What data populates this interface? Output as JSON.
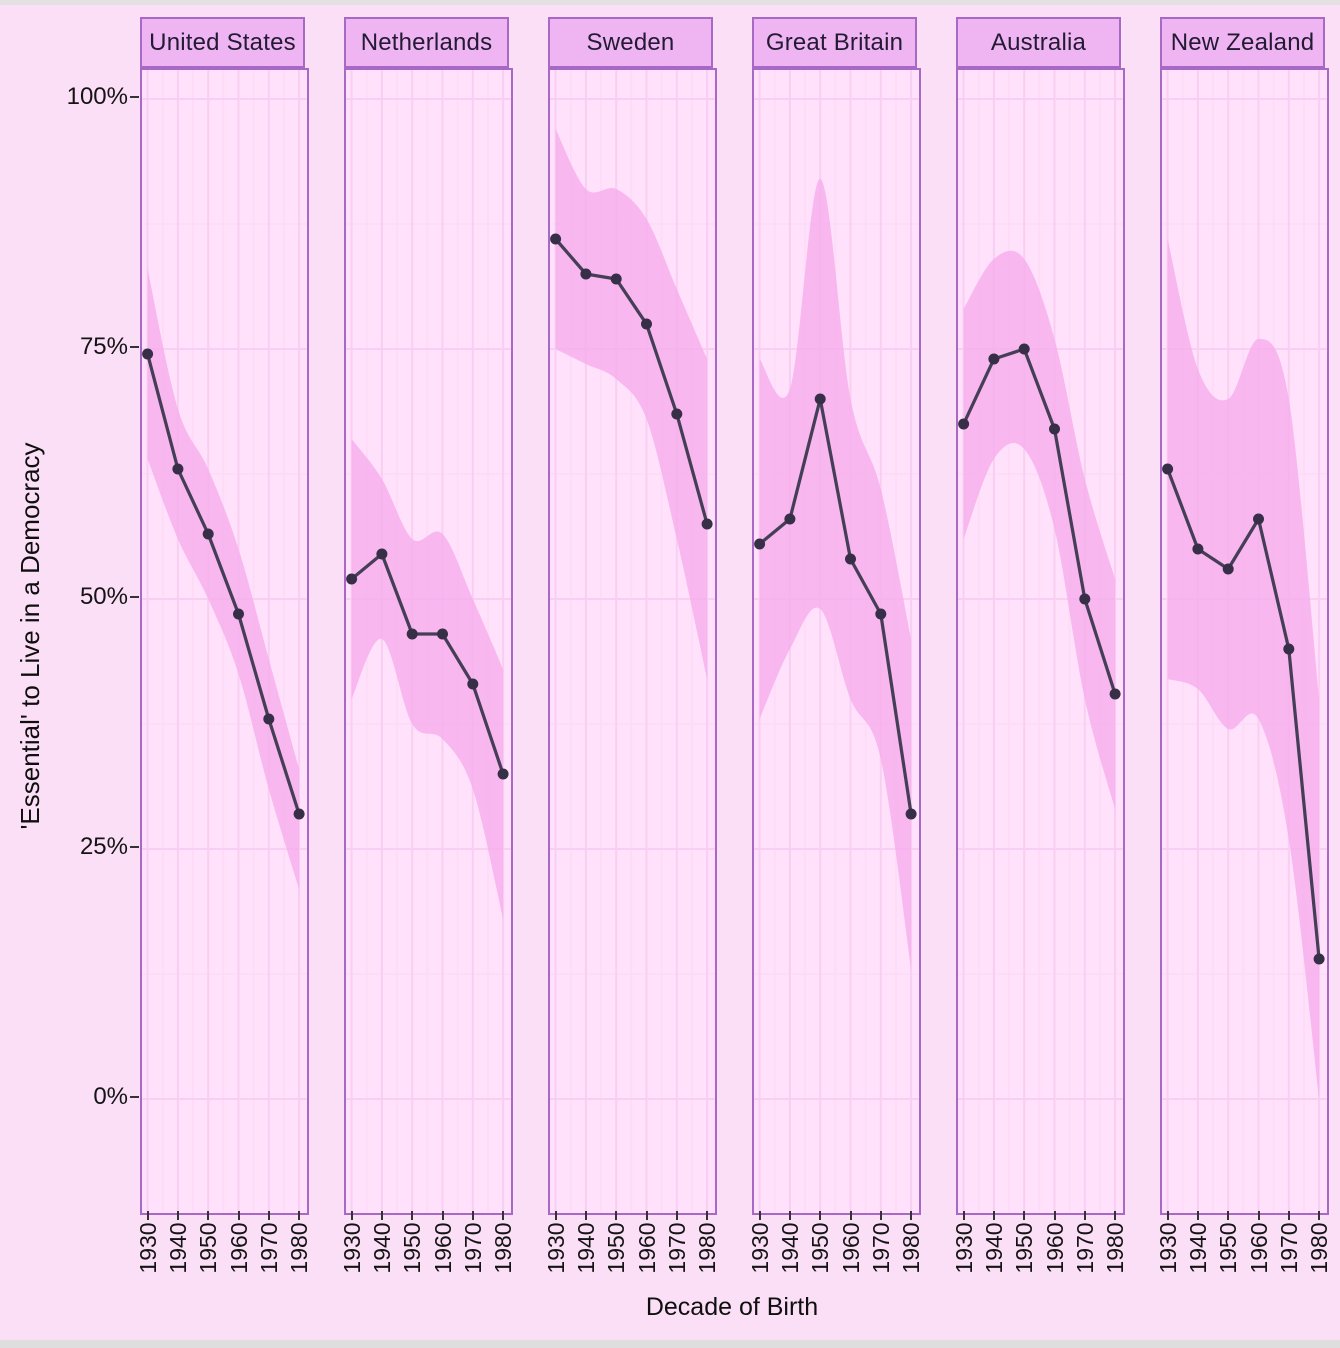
{
  "axes": {
    "y_title": "'Essential' to Live in a Democracy",
    "x_title": "Decade of Birth",
    "y_tick_labels": [
      "100%",
      "75%",
      "50%",
      "25%",
      "0%"
    ],
    "y_tick_values": [
      100,
      75,
      50,
      25,
      0
    ],
    "x_tick_labels": [
      "1930",
      "1940",
      "1950",
      "1960",
      "1970",
      "1980"
    ]
  },
  "chart_data": {
    "type": "line",
    "description": "Faceted line chart with confidence ribbons: share saying it is 'essential' to live in a democracy, by decade of birth, per country",
    "categories": [
      "1930",
      "1940",
      "1950",
      "1960",
      "1970",
      "1980"
    ],
    "xlabel": "Decade of Birth",
    "ylabel": "'Essential' to Live in a Democracy",
    "ylim": [
      0,
      100
    ],
    "grid": "major and minor, both axes",
    "legend": "none",
    "facets": [
      {
        "country": "United States",
        "values": [
          74.5,
          63,
          56.5,
          48.5,
          38,
          28.5
        ],
        "ribbon_upper": [
          83,
          69,
          63,
          55,
          44,
          33
        ],
        "ribbon_lower": [
          64,
          56,
          50,
          42.5,
          31,
          21
        ]
      },
      {
        "country": "Netherlands",
        "values": [
          52,
          54.5,
          46.5,
          46.5,
          41.5,
          32.5
        ],
        "ribbon_upper": [
          66,
          62,
          56,
          56.5,
          50,
          43
        ],
        "ribbon_lower": [
          40,
          46,
          37.5,
          36,
          31,
          18
        ]
      },
      {
        "country": "Sweden",
        "values": [
          86,
          82.5,
          82,
          77.5,
          68.5,
          57.5
        ],
        "ribbon_upper": [
          97,
          91,
          91,
          88,
          81,
          74
        ],
        "ribbon_lower": [
          75,
          73.5,
          72,
          68,
          56,
          42
        ]
      },
      {
        "country": "Great Britain",
        "values": [
          55.5,
          58,
          70,
          54,
          48.5,
          28.5
        ],
        "ribbon_upper": [
          74,
          71,
          92,
          70,
          61,
          46
        ],
        "ribbon_lower": [
          38,
          45,
          49,
          40,
          34,
          13
        ]
      },
      {
        "country": "Australia",
        "values": [
          67.5,
          74,
          75,
          67,
          50,
          40.5
        ],
        "ribbon_upper": [
          79,
          84,
          84,
          76,
          62,
          52
        ],
        "ribbon_lower": [
          56,
          64,
          65,
          57,
          40,
          29
        ]
      },
      {
        "country": "New Zealand",
        "values": [
          63,
          55,
          53,
          58,
          45,
          14
        ],
        "ribbon_upper": [
          86,
          73,
          70,
          76,
          70,
          40
        ],
        "ribbon_lower": [
          42,
          41,
          37,
          38,
          26,
          0
        ]
      }
    ]
  },
  "colors": {
    "outer_background": "#fbdff6",
    "panel_background": "#ffe1fb",
    "strip_background": "#efb4f2",
    "panel_border": "#a868c5",
    "ribbon": "#f6aceb",
    "line": "#453e57",
    "point": "#362f47",
    "grid_major": "#f8cef2",
    "grid_minor": "#fbdbf6",
    "tick_text": "#141414",
    "top_chrome": "#e3e1e2",
    "bottom_chrome": "#dedede"
  }
}
